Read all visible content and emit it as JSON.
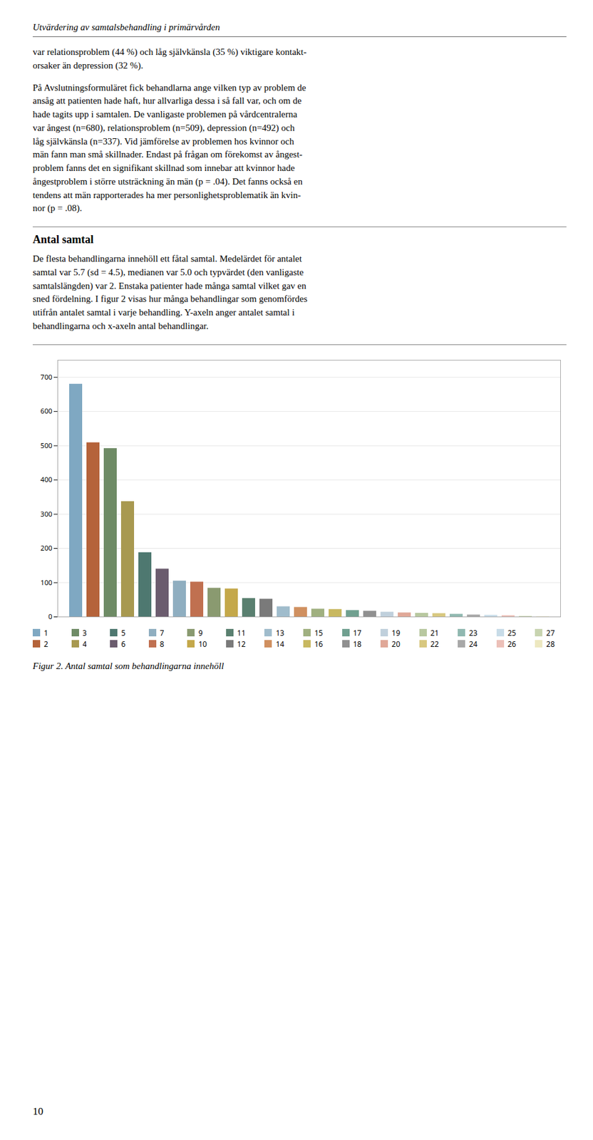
{
  "chart_data": {
    "type": "bar",
    "title": "Utvärdering av samtalsbehandling i primärvården",
    "caption": "Figur 2. Antal samtal som behandlingarna innehöll",
    "annotations": [
      "var relationsproblem (44 %) och låg självkänsla (35 %) viktigare kontakt-\norsaker än depression (32 %).",
      "På Avslutningsformuläret fick behandlarna ange vilken typ av problem de\nansåg att patienten hade haft, hur allvarliga dessa i så fall var, och om de\nhade tagits upp i samtalen. De vanligaste problemen på vårdcentralerna\nvar ångest (n=680), relationsproblem (n=509), depression (n=492) och\nlåg självkänsla (n=337). Vid jämförelse av problemen hos kvinnor och\nmän fann man små skillnader. Endast på frågan om förekomst av ångest-\nproblem fanns det en signifikant skillnad som innebar att kvinnor hade\nångestproblem i större utsträckning än män (p = .04). Det fanns också en\ntendens att män rapporterades ha mer personlighetsproblematik än kvin-\nnor (p = .08).",
      "Antal samtal",
      "De flesta behandlingarna innehöll ett fåtal samtal. Medelärdet för antalet\nsamtal var 5.7 (sd = 4.5), medianen var 5.0 och typvärdet (den vanligaste\nsamtalslängden) var 2. Enstaka patienter hade många samtal vilket gav en\nsned fördelning. I figur 2 visas hur många behandlingar som genomfördes\nutifrån antalet samtal i varje behandling. Y-axeln anger antalet samtal i\nbehandlingarna och x-axeln antal behandlingar.",
      "10"
    ],
    "categories": [
      "1",
      "2",
      "3",
      "4",
      "5",
      "6",
      "7",
      "8",
      "9",
      "10",
      "11",
      "12",
      "13",
      "14",
      "15",
      "16",
      "17",
      "18",
      "19",
      "20",
      "21",
      "22",
      "23",
      "24",
      "25",
      "26",
      "27",
      "28"
    ],
    "values": [
      680,
      509,
      492,
      337,
      188,
      140,
      105,
      102,
      84,
      82,
      54,
      52,
      30,
      28,
      23,
      22,
      19,
      17,
      14,
      12,
      11,
      10,
      8,
      6,
      5,
      4,
      2,
      1
    ],
    "colors": [
      "#7FA8C2",
      "#B5633A",
      "#6E8B65",
      "#A89950",
      "#4E7870",
      "#6B5C6E",
      "#8FAEC0",
      "#C07050",
      "#8A9A70",
      "#C4A84A",
      "#5A8070",
      "#7A7A7A",
      "#A0BCCC",
      "#D09060",
      "#A0B080",
      "#C8B860",
      "#70A090",
      "#909090",
      "#C0D0DC",
      "#E0A898",
      "#B8C8A0",
      "#D8C880",
      "#90B8B0",
      "#A8A8A8",
      "#C8DCE8",
      "#ECC0B8",
      "#C8D4B0",
      "#EDE8C0"
    ],
    "ylim": [
      0,
      750
    ],
    "yticks": [
      0,
      100,
      200,
      300,
      400,
      500,
      600,
      700
    ],
    "grid": true,
    "legend": "bottom",
    "tick_labels": "y"
  }
}
